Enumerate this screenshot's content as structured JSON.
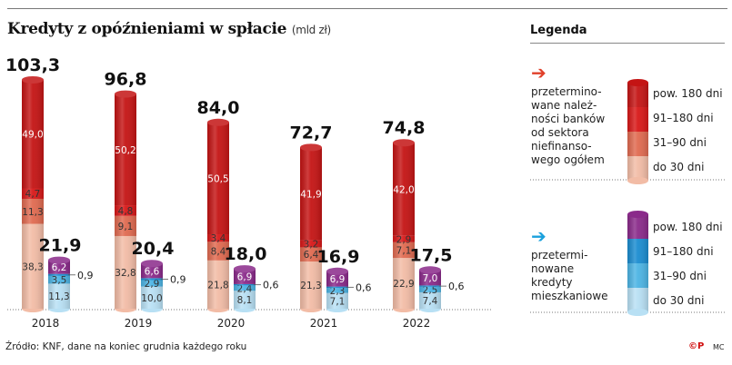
{
  "title": "Kredyty z opóźnieniami w spłacie",
  "unit": "(mld zł)",
  "source": "Źródło: KNF, dane na koniec grudnia każdego roku",
  "credit": "©P",
  "author": "MC",
  "legend": {
    "title": "Legenda",
    "groups": [
      {
        "description": "przetermino-\nwane należ-\nności banków\nod sektora\nniefinanso-\nwego ogółem",
        "arrow_color": "#e0402a",
        "categories": [
          "pow. 180 dni",
          "91–180 dni",
          "31–90 dni",
          "do 30 dni"
        ]
      },
      {
        "description": "przetermi-\nnowane\nkredyty\nmieszkaniowe",
        "arrow_color": "#1aa0dc",
        "categories": [
          "pow. 180 dni",
          "91–180 dni",
          "31–90 dni",
          "do 30 dni"
        ]
      }
    ]
  },
  "colors": {
    "nonfin": [
      "#f2bca6",
      "#e06a50",
      "#d81818",
      "#c41414"
    ],
    "mortgage": [
      "#b8e0f4",
      "#4cb4e4",
      "#1a8cd0",
      "#8a2a8a"
    ]
  },
  "chart_data": {
    "type": "bar",
    "stacked": true,
    "title": "Kredyty z opóźnieniami w spłacie (mld zł)",
    "categories": [
      "2018",
      "2019",
      "2020",
      "2021",
      "2022"
    ],
    "groups": [
      {
        "name": "przeterminowane należności banków od sektora niefinansowego ogółem",
        "totals": [
          "103,3",
          "96,8",
          "84,0",
          "72,7",
          "74,8"
        ],
        "series": [
          {
            "name": "do 30 dni",
            "values": [
              38.3,
              32.8,
              21.8,
              21.3,
              22.9
            ]
          },
          {
            "name": "31–90 dni",
            "values": [
              11.3,
              9.1,
              8.4,
              6.4,
              7.1
            ]
          },
          {
            "name": "91–180 dni",
            "values": [
              4.7,
              4.8,
              3.4,
              3.2,
              2.9
            ]
          },
          {
            "name": "pow. 180 dni",
            "values": [
              49.0,
              50.2,
              50.5,
              41.9,
              42.0
            ]
          }
        ]
      },
      {
        "name": "przeterminowane kredyty mieszkaniowe",
        "totals": [
          "21,9",
          "20,4",
          "18,0",
          "16,9",
          "17,5"
        ],
        "series": [
          {
            "name": "do 30 dni",
            "values": [
              11.3,
              10.0,
              8.1,
              7.1,
              7.4
            ]
          },
          {
            "name": "31–90 dni",
            "values": [
              3.5,
              2.9,
              2.4,
              2.3,
              2.5
            ]
          },
          {
            "name": "91–180 dni",
            "values": [
              0.9,
              0.9,
              0.6,
              0.6,
              0.6
            ]
          },
          {
            "name": "pow. 180 dni",
            "values": [
              6.2,
              6.6,
              6.9,
              6.9,
              7.0
            ]
          }
        ]
      }
    ],
    "xlabel": "",
    "ylabel": "",
    "ylim": [
      0,
      105
    ],
    "grid": false,
    "legend": "right"
  }
}
